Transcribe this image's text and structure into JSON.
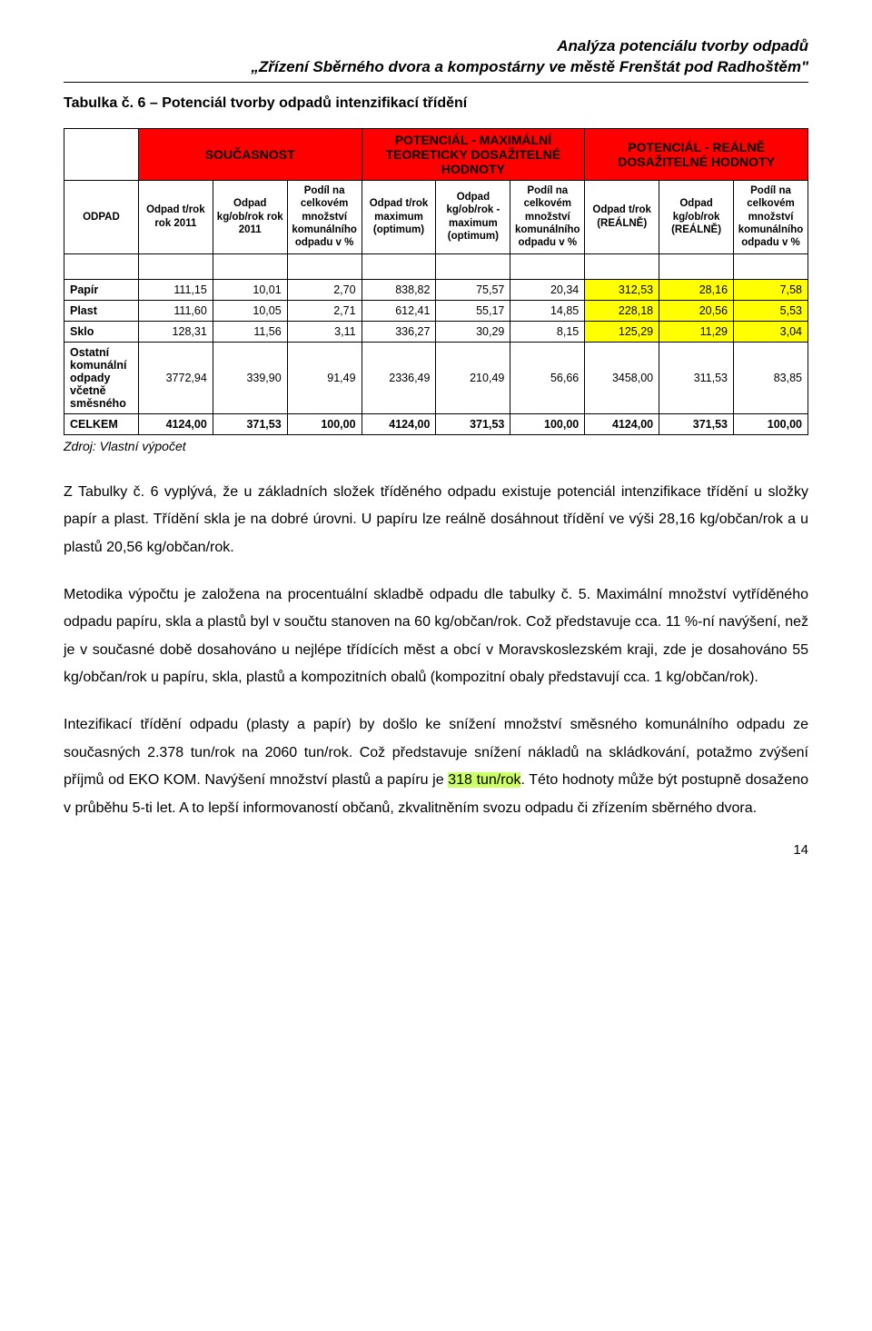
{
  "header": {
    "line1": "Analýza potenciálu tvorby odpadů",
    "line2": "„Zřízení Sběrného dvora a kompostárny ve městě Frenštát pod Radhoštěm\""
  },
  "table": {
    "caption": "Tabulka č. 6 – Potenciál tvorby odpadů intenzifikací třídění",
    "groups": {
      "g1": "SOUČASNOST",
      "g2": "POTENCIÁL - MAXIMÁLNÍ TEORETICKY DOSAŽITELNÉ HODNOTY",
      "g3": "POTENCIÁL - REÁLNĚ DOSAŽITELNÉ HODNOTY"
    },
    "columns": [
      "ODPAD",
      "Odpad t/rok rok 2011",
      "Odpad kg/ob/rok rok 2011",
      "Podíl na celkovém množství komunálního odpadu v %",
      "Odpad t/rok maximum (optimum)",
      "Odpad kg/ob/rok - maximum (optimum)",
      "Podíl na celkovém množství komunálního odpadu v %",
      "Odpad t/rok (REÁLNĚ)",
      "Odpad kg/ob/rok (REÁLNĚ)",
      "Podíl na celkovém množství komunálního odpadu v %"
    ],
    "rows": [
      {
        "label": "Papír",
        "v": [
          "111,15",
          "10,01",
          "2,70",
          "838,82",
          "75,57",
          "20,34",
          "312,53",
          "28,16",
          "7,58"
        ]
      },
      {
        "label": "Plast",
        "v": [
          "111,60",
          "10,05",
          "2,71",
          "612,41",
          "55,17",
          "14,85",
          "228,18",
          "20,56",
          "5,53"
        ]
      },
      {
        "label": "Sklo",
        "v": [
          "128,31",
          "11,56",
          "3,11",
          "336,27",
          "30,29",
          "8,15",
          "125,29",
          "11,29",
          "3,04"
        ]
      },
      {
        "label": "Ostatní komunální odpady včetně směsného",
        "v": [
          "3772,94",
          "339,90",
          "91,49",
          "2336,49",
          "210,49",
          "56,66",
          "3458,00",
          "311,53",
          "83,85"
        ]
      },
      {
        "label": "CELKEM",
        "v": [
          "4124,00",
          "371,53",
          "100,00",
          "4124,00",
          "371,53",
          "100,00",
          "4124,00",
          "371,53",
          "100,00"
        ]
      }
    ],
    "highlight_cols": [
      6,
      7,
      8
    ],
    "highlight_rows": [
      0,
      1,
      2
    ],
    "colors": {
      "group_bg": "#ff0000",
      "highlight_bg": "#ffff00",
      "inline_hl": "#ccff66"
    }
  },
  "source": "Zdroj: Vlastní výpočet",
  "paragraphs": {
    "p1": "Z Tabulky č. 6 vyplývá, že u základních složek tříděného odpadu existuje potenciál intenzifikace třídění u složky papír a plast. Třídění skla je na dobré úrovni. U papíru lze reálně dosáhnout třídění ve výši 28,16 kg/občan/rok a u plastů 20,56 kg/občan/rok.",
    "p2": "Metodika výpočtu je založena na procentuální skladbě odpadu dle tabulky č. 5. Maximální množství vytříděného odpadu papíru, skla a plastů byl v součtu stanoven na 60 kg/občan/rok. Což představuje cca. 11 %-ní navýšení, než je v současné době dosahováno u nejlépe třídících měst a obcí v Moravskoslezském kraji, zde je dosahováno 55 kg/občan/rok u papíru, skla, plastů a kompozitních obalů (kompozitní obaly představují cca. 1 kg/občan/rok).",
    "p3_a": "Intezifikací třídění odpadu (plasty a papír) by došlo ke snížení množství směsného komunálního odpadu ze současných 2.378 tun/rok na 2060 tun/rok. Což představuje snížení nákladů na skládkování, potažmo zvýšení příjmů od EKO KOM. Navýšení množství plastů a papíru je ",
    "p3_hl": "318 tun/rok",
    "p3_b": ". Této hodnoty může být postupně dosaženo v průběhu 5-ti let. A to lepší informovaností občanů, zkvalitněním svozu odpadu či zřízením sběrného dvora."
  },
  "page_number": "14"
}
